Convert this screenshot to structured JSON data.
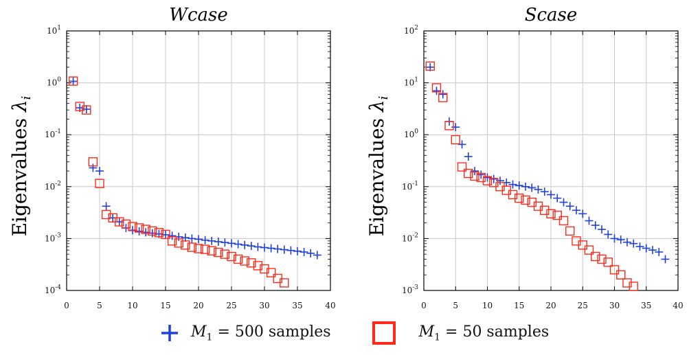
{
  "legend": {
    "plus": {
      "var": "M",
      "sub": "1",
      "rest": "= 500 samples",
      "color": "#1f3fe0"
    },
    "square": {
      "var": "M",
      "sub": "1",
      "rest": "= 50 samples",
      "color": "#ff2a1a"
    }
  },
  "chart_data": [
    {
      "type": "scatter",
      "title": "Wcase",
      "ylabel_text": "Eigenvalues",
      "ylabel_symbol": "λ",
      "ylabel_sub": "i",
      "yscale": "log",
      "xlim": [
        0,
        40
      ],
      "ylim_exp": [
        -4,
        1
      ],
      "xticks": [
        "0",
        "5",
        "10",
        "15",
        "20",
        "25",
        "30",
        "35",
        "40"
      ],
      "yticks": [
        {
          "base": "10",
          "exp": "-4"
        },
        {
          "base": "10",
          "exp": "-3"
        },
        {
          "base": "10",
          "exp": "-2"
        },
        {
          "base": "10",
          "exp": "-1"
        },
        {
          "base": "10",
          "exp": "0"
        },
        {
          "base": "10",
          "exp": "1"
        }
      ],
      "grid": true,
      "series": [
        {
          "name": "M1 = 500 samples",
          "marker": "plus",
          "color": "#1f3fe0",
          "x": [
            1,
            2,
            3,
            4,
            5,
            6,
            7,
            8,
            9,
            10,
            11,
            12,
            13,
            14,
            15,
            16,
            17,
            18,
            19,
            20,
            21,
            22,
            23,
            24,
            25,
            26,
            27,
            28,
            29,
            30,
            31,
            32,
            33,
            34,
            35,
            36,
            37,
            38
          ],
          "y": [
            1.07,
            0.33,
            0.31,
            0.023,
            0.02,
            0.0042,
            0.0025,
            0.0021,
            0.0016,
            0.00145,
            0.00138,
            0.00132,
            0.00127,
            0.00123,
            0.00118,
            0.00113,
            0.00108,
            0.00104,
            0.001,
            0.00097,
            0.00093,
            0.0009,
            0.00087,
            0.00084,
            0.00081,
            0.00078,
            0.00075,
            0.00072,
            0.00069,
            0.00067,
            0.00065,
            0.00063,
            0.00061,
            0.00059,
            0.00057,
            0.00055,
            0.00052,
            0.00048
          ]
        },
        {
          "name": "M1 = 50 samples",
          "marker": "square",
          "color": "#ff2a1a",
          "x": [
            1,
            2,
            3,
            4,
            5,
            6,
            7,
            8,
            9,
            10,
            11,
            12,
            13,
            14,
            15,
            16,
            17,
            18,
            19,
            20,
            21,
            22,
            23,
            24,
            25,
            26,
            27,
            28,
            29,
            30,
            31,
            32,
            33
          ],
          "y": [
            1.08,
            0.35,
            0.3,
            0.03,
            0.0115,
            0.0029,
            0.0025,
            0.0021,
            0.0019,
            0.0017,
            0.0016,
            0.0015,
            0.0014,
            0.0013,
            0.0012,
            0.0009,
            0.00082,
            0.00075,
            0.00068,
            0.00064,
            0.00062,
            0.00058,
            0.00054,
            0.0005,
            0.00045,
            0.0004,
            0.00037,
            0.00034,
            0.0003,
            0.00026,
            0.00022,
            0.00017,
            0.00014
          ]
        }
      ]
    },
    {
      "type": "scatter",
      "title": "Scase",
      "ylabel_text": "Eigenvalues",
      "ylabel_symbol": "λ",
      "ylabel_sub": "i",
      "yscale": "log",
      "xlim": [
        0,
        40
      ],
      "ylim_exp": [
        -3,
        2
      ],
      "xticks": [
        "0",
        "5",
        "10",
        "15",
        "20",
        "25",
        "30",
        "35",
        "40"
      ],
      "yticks": [
        {
          "base": "10",
          "exp": "-3"
        },
        {
          "base": "10",
          "exp": "-2"
        },
        {
          "base": "10",
          "exp": "-1"
        },
        {
          "base": "10",
          "exp": "0"
        },
        {
          "base": "10",
          "exp": "1"
        },
        {
          "base": "10",
          "exp": "2"
        }
      ],
      "grid": true,
      "series": [
        {
          "name": "M1 = 500 samples",
          "marker": "plus",
          "color": "#1f3fe0",
          "x": [
            1,
            2,
            3,
            4,
            5,
            6,
            7,
            8,
            9,
            10,
            11,
            12,
            13,
            14,
            15,
            16,
            17,
            18,
            19,
            20,
            21,
            22,
            23,
            24,
            25,
            26,
            27,
            28,
            29,
            30,
            31,
            32,
            33,
            34,
            35,
            36,
            37,
            38
          ],
          "y": [
            20,
            7.0,
            6.0,
            1.8,
            1.4,
            0.65,
            0.38,
            0.2,
            0.17,
            0.15,
            0.14,
            0.13,
            0.12,
            0.11,
            0.105,
            0.1,
            0.095,
            0.088,
            0.08,
            0.07,
            0.06,
            0.05,
            0.042,
            0.035,
            0.03,
            0.022,
            0.018,
            0.015,
            0.012,
            0.01,
            0.0095,
            0.0085,
            0.008,
            0.007,
            0.0065,
            0.006,
            0.0055,
            0.004
          ]
        },
        {
          "name": "M1 = 50 samples",
          "marker": "square",
          "color": "#ff2a1a",
          "x": [
            1,
            2,
            3,
            4,
            5,
            6,
            7,
            8,
            9,
            10,
            11,
            12,
            13,
            14,
            15,
            16,
            17,
            18,
            19,
            20,
            21,
            22,
            23,
            24,
            25,
            26,
            27,
            28,
            29,
            30,
            31,
            32,
            33
          ],
          "y": [
            21,
            8.0,
            5.2,
            1.5,
            0.8,
            0.24,
            0.18,
            0.16,
            0.15,
            0.13,
            0.12,
            0.1,
            0.085,
            0.07,
            0.06,
            0.055,
            0.05,
            0.042,
            0.035,
            0.03,
            0.028,
            0.022,
            0.014,
            0.009,
            0.0075,
            0.006,
            0.0045,
            0.004,
            0.0035,
            0.0025,
            0.002,
            0.0014,
            0.0012
          ]
        }
      ]
    }
  ]
}
